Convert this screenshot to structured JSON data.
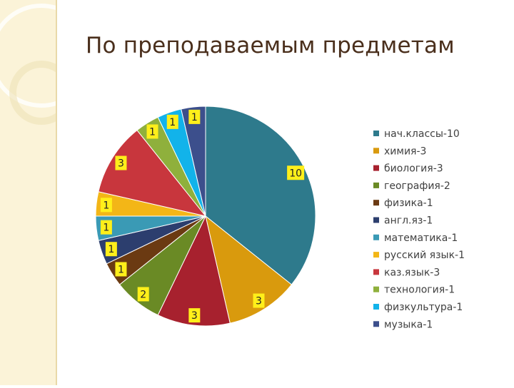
{
  "slide": {
    "title": "По преподаваемым предметам"
  },
  "chart_data": {
    "type": "pie",
    "categories": [
      "нач.классы-10",
      "химия-3",
      "биология-3",
      "география-2",
      "физика-1",
      "англ.яз-1",
      "математика-1",
      "русский язык-1",
      "каз.язык-3",
      "технология-1",
      "физкультура-1",
      "музыка-1"
    ],
    "values": [
      10,
      3,
      3,
      2,
      1,
      1,
      1,
      1,
      3,
      1,
      1,
      1
    ],
    "data_labels": [
      "10",
      "3",
      "3",
      "2",
      "1",
      "1",
      "1",
      "1",
      "3",
      "1",
      "1",
      "1"
    ],
    "colors": [
      "#2e7a8c",
      "#d99a0d",
      "#a7212e",
      "#6a8a25",
      "#6b3a12",
      "#2c3e6e",
      "#3a9ab5",
      "#f3b617",
      "#c8363d",
      "#8fb03c",
      "#12b3ea",
      "#3c4f8c"
    ],
    "start_angle": "12 o'clock",
    "direction": "clockwise",
    "legend_position": "right",
    "label_style": "yellow boxes"
  }
}
